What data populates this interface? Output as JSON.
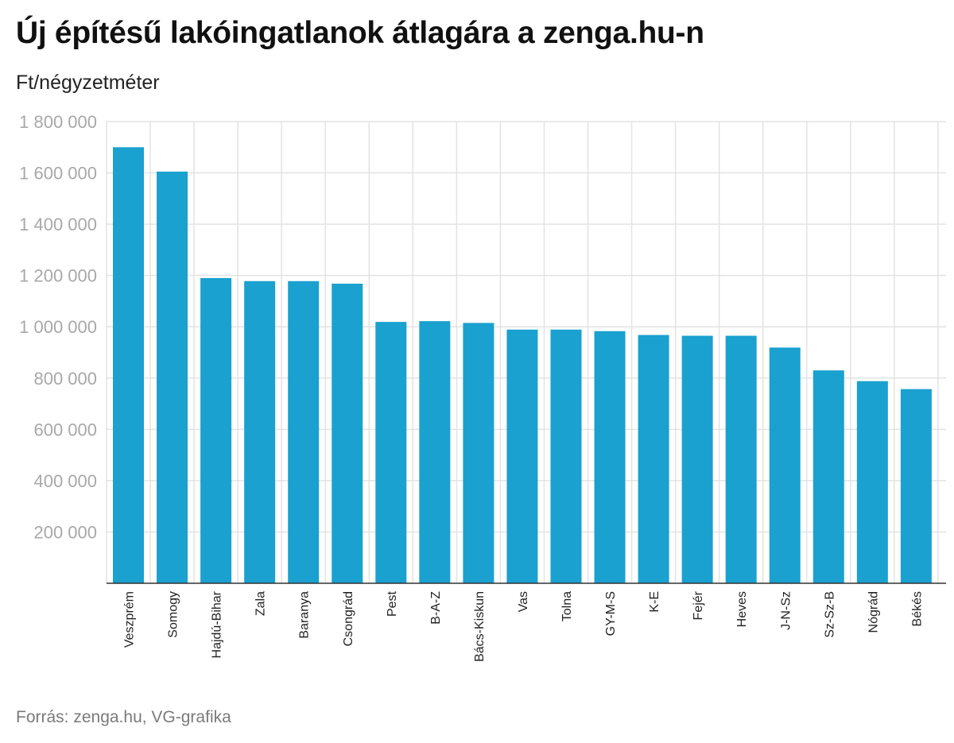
{
  "title": "Új építésű lakóingatlanok átlagára a zenga.hu-n",
  "subtitle": "Ft/négyzetméter",
  "source": "Forrás: zenga.hu, VG-grafika",
  "chart_data": {
    "type": "bar",
    "title": "Új építésű lakóingatlanok átlagára a zenga.hu-n",
    "ylabel": "Ft/négyzetméter",
    "xlabel": "",
    "ylim": [
      0,
      1800000
    ],
    "yticks": [
      {
        "value": 200000,
        "label": "200 000"
      },
      {
        "value": 400000,
        "label": "400 000"
      },
      {
        "value": 600000,
        "label": "600 000"
      },
      {
        "value": 800000,
        "label": "800 000"
      },
      {
        "value": 1000000,
        "label": "1 000 000"
      },
      {
        "value": 1200000,
        "label": "1 200 000"
      },
      {
        "value": 1400000,
        "label": "1 400 000"
      },
      {
        "value": 1600000,
        "label": "1 600 000"
      },
      {
        "value": 1800000,
        "label": "1 800 000"
      }
    ],
    "grid": true,
    "bar_color": "#1aa1cf",
    "categories": [
      "Veszprém",
      "Somogy",
      "Hajdú-Bihar",
      "Zala",
      "Baranya",
      "Csongrád",
      "Pest",
      "B-A-Z",
      "Bács-Kiskun",
      "Vas",
      "Tolna",
      "GY-M-S",
      "K-E",
      "Fejér",
      "Heves",
      "J-N-Sz",
      "Sz-Sz-B",
      "Nógrád",
      "Békés"
    ],
    "values": [
      1700000,
      1605000,
      1190000,
      1178000,
      1178000,
      1168000,
      1019000,
      1022000,
      1015000,
      989000,
      989000,
      983000,
      968000,
      965000,
      965000,
      919000,
      830000,
      788000,
      757000
    ]
  }
}
